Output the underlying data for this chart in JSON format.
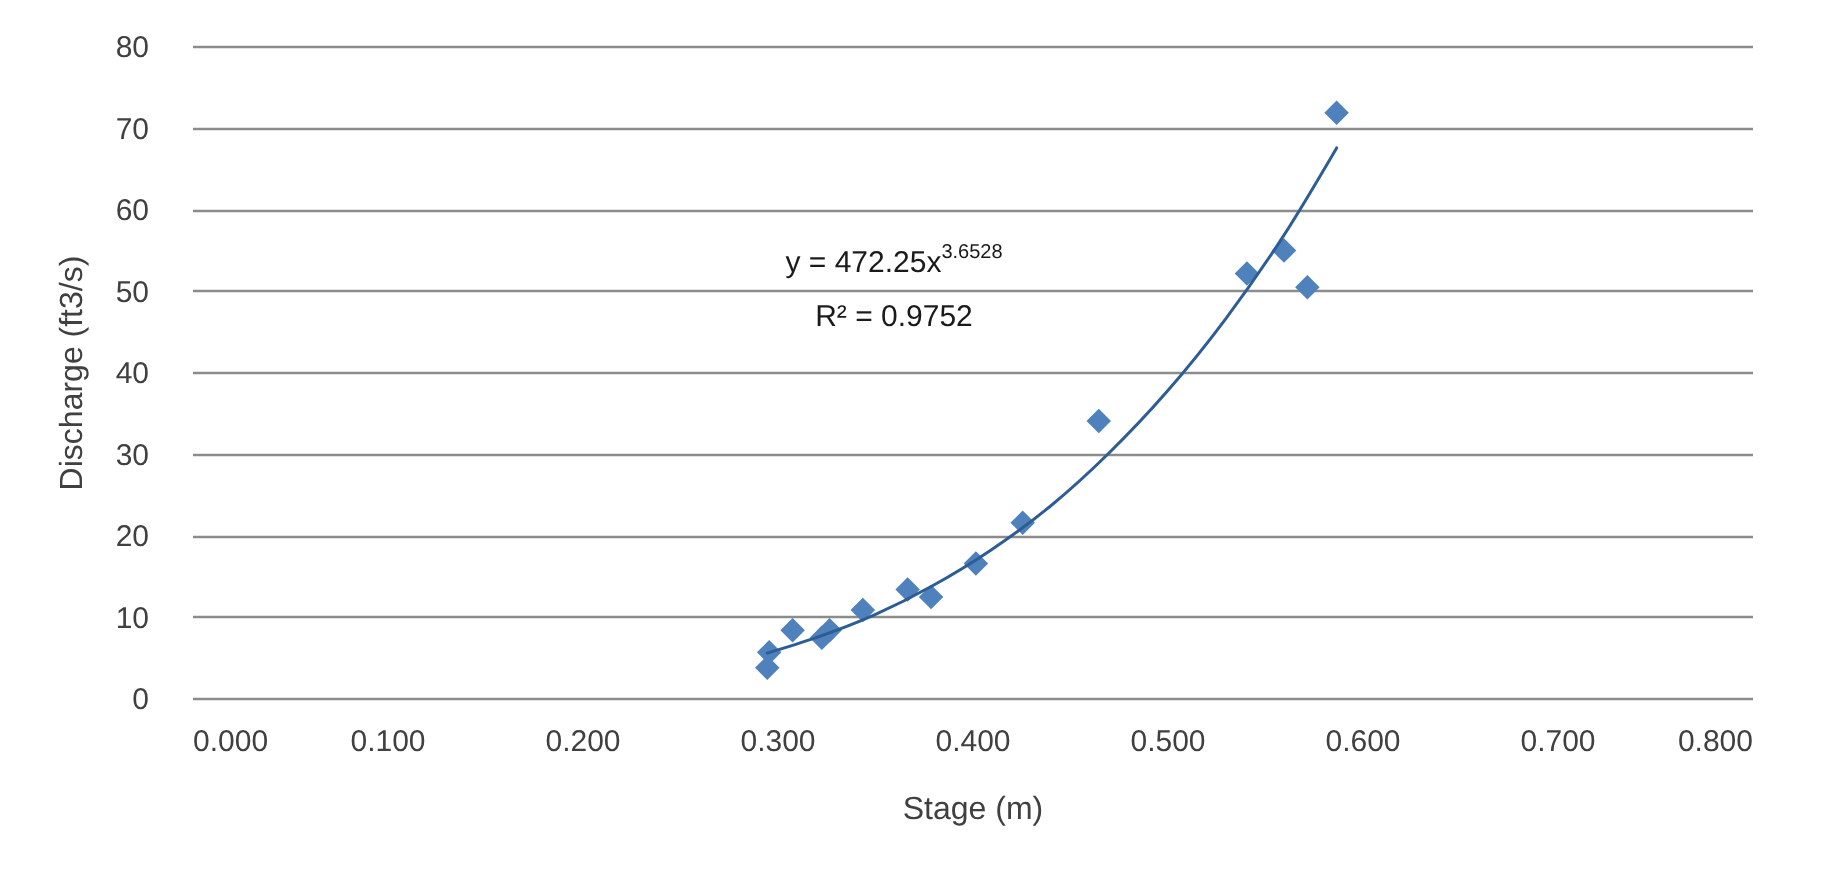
{
  "chart_data": {
    "type": "scatter",
    "xlabel": "Stage (m)",
    "ylabel": "Discharge (ft3/s)",
    "xlim": [
      0,
      0.8
    ],
    "xticks": [
      {
        "value": 0,
        "label": "0.000"
      },
      {
        "value": 0.1,
        "label": "0.100"
      },
      {
        "value": 0.2,
        "label": "0.200"
      },
      {
        "value": 0.3,
        "label": "0.300"
      },
      {
        "value": 0.4,
        "label": "0.400"
      },
      {
        "value": 0.5,
        "label": "0.500"
      },
      {
        "value": 0.6,
        "label": "0.600"
      },
      {
        "value": 0.7,
        "label": "0.700"
      },
      {
        "value": 0.8,
        "label": "0.800"
      }
    ],
    "ylim": [
      0,
      80
    ],
    "yticks": [
      0,
      10,
      20,
      30,
      40,
      50,
      60,
      70,
      80
    ],
    "grid": "y",
    "annotations": [
      "y = 472.25x$^{3.6528}$",
      "R² = 0.9752"
    ],
    "series": [
      {
        "color": "#4f81bd",
        "marker": "diamond",
        "x": [
          0.295,
          0.296,
          0.308,
          0.323,
          0.327,
          0.344,
          0.367,
          0.379,
          0.402,
          0.426,
          0.465,
          0.541,
          0.56,
          0.572,
          0.587
        ],
        "values": [
          3.7,
          5.6,
          8.3,
          7.4,
          8.3,
          10.8,
          13.3,
          12.4,
          16.5,
          21.5,
          34.0,
          52.1,
          54.9,
          50.4,
          71.8
        ]
      },
      {
        "type": "line",
        "color": "#2c5d95",
        "x": [
          0.295,
          0.32,
          0.35,
          0.38,
          0.41,
          0.44,
          0.47,
          0.5,
          0.53,
          0.56,
          0.587
        ],
        "values": [
          5.5,
          7.4,
          10.2,
          13.8,
          18.2,
          23.5,
          30.0,
          37.6,
          46.5,
          56.8,
          67.5
        ]
      }
    ]
  }
}
